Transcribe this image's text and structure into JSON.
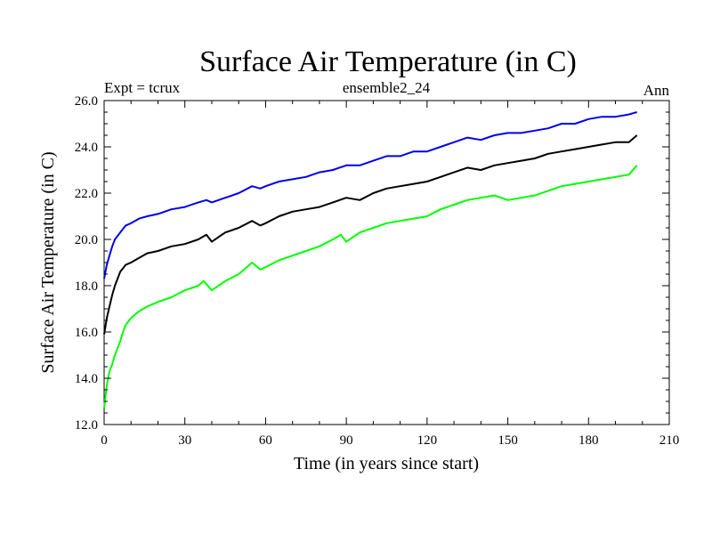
{
  "chart_data": {
    "type": "line",
    "title": "Surface Air Temperature (in C)",
    "subtitle_left": "Expt = tcrux",
    "subtitle_center": "ensemble2_24",
    "subtitle_right": "Ann",
    "xlabel": "Time (in years since start)",
    "ylabel": "Surface Air Temperature (in C)",
    "xlim": [
      0,
      210
    ],
    "ylim": [
      12.0,
      26.0
    ],
    "xticks": [
      0,
      30,
      60,
      90,
      120,
      150,
      180,
      210
    ],
    "xtick_labels": [
      "0",
      "30",
      "60",
      "90",
      "120",
      "150",
      "180",
      "210"
    ],
    "yticks": [
      12.0,
      14.0,
      16.0,
      18.0,
      20.0,
      22.0,
      24.0,
      26.0
    ],
    "ytick_labels": [
      "12.0",
      "14.0",
      "16.0",
      "18.0",
      "20.0",
      "22.0",
      "24.0",
      "26.0"
    ],
    "grid": false,
    "series": [
      {
        "name": "upper",
        "color": "#0000ee",
        "x": [
          0,
          1,
          2,
          3,
          4,
          6,
          8,
          10,
          13,
          16,
          20,
          25,
          30,
          35,
          38,
          40,
          45,
          50,
          55,
          58,
          60,
          65,
          70,
          75,
          80,
          85,
          90,
          95,
          100,
          105,
          110,
          115,
          120,
          125,
          130,
          135,
          140,
          145,
          150,
          155,
          160,
          165,
          170,
          175,
          180,
          185,
          190,
          195,
          198
        ],
        "values": [
          18.3,
          18.9,
          19.3,
          19.7,
          20.0,
          20.3,
          20.6,
          20.7,
          20.9,
          21.0,
          21.1,
          21.3,
          21.4,
          21.6,
          21.7,
          21.6,
          21.8,
          22.0,
          22.3,
          22.2,
          22.3,
          22.5,
          22.6,
          22.7,
          22.9,
          23.0,
          23.2,
          23.2,
          23.4,
          23.6,
          23.6,
          23.8,
          23.8,
          24.0,
          24.2,
          24.4,
          24.3,
          24.5,
          24.6,
          24.6,
          24.7,
          24.8,
          25.0,
          25.0,
          25.2,
          25.3,
          25.3,
          25.4,
          25.5
        ]
      },
      {
        "name": "middle",
        "color": "#000000",
        "x": [
          0,
          1,
          2,
          3,
          4,
          6,
          8,
          10,
          13,
          16,
          20,
          25,
          30,
          35,
          38,
          40,
          45,
          50,
          55,
          58,
          60,
          65,
          70,
          75,
          80,
          85,
          90,
          95,
          100,
          105,
          110,
          115,
          120,
          125,
          130,
          135,
          140,
          145,
          150,
          155,
          160,
          165,
          170,
          175,
          180,
          185,
          190,
          195,
          198
        ],
        "values": [
          15.9,
          16.6,
          17.1,
          17.6,
          18.0,
          18.6,
          18.9,
          19.0,
          19.2,
          19.4,
          19.5,
          19.7,
          19.8,
          20.0,
          20.2,
          19.9,
          20.3,
          20.5,
          20.8,
          20.6,
          20.7,
          21.0,
          21.2,
          21.3,
          21.4,
          21.6,
          21.8,
          21.7,
          22.0,
          22.2,
          22.3,
          22.4,
          22.5,
          22.7,
          22.9,
          23.1,
          23.0,
          23.2,
          23.3,
          23.4,
          23.5,
          23.7,
          23.8,
          23.9,
          24.0,
          24.1,
          24.2,
          24.2,
          24.5
        ]
      },
      {
        "name": "lower",
        "color": "#00ff00",
        "x": [
          0,
          1,
          2,
          3,
          4,
          5,
          6,
          7,
          8,
          10,
          13,
          16,
          20,
          25,
          30,
          35,
          37,
          40,
          45,
          50,
          55,
          58,
          60,
          65,
          70,
          75,
          80,
          85,
          88,
          90,
          95,
          100,
          105,
          110,
          115,
          120,
          125,
          130,
          135,
          140,
          145,
          150,
          155,
          160,
          165,
          170,
          175,
          180,
          185,
          190,
          195,
          198
        ],
        "values": [
          12.7,
          13.7,
          14.3,
          14.6,
          15.0,
          15.3,
          15.6,
          16.0,
          16.3,
          16.6,
          16.9,
          17.1,
          17.3,
          17.5,
          17.8,
          18.0,
          18.2,
          17.8,
          18.2,
          18.5,
          19.0,
          18.7,
          18.8,
          19.1,
          19.3,
          19.5,
          19.7,
          20.0,
          20.2,
          19.9,
          20.3,
          20.5,
          20.7,
          20.8,
          20.9,
          21.0,
          21.3,
          21.5,
          21.7,
          21.8,
          21.9,
          21.7,
          21.8,
          21.9,
          22.1,
          22.3,
          22.4,
          22.5,
          22.6,
          22.7,
          22.8,
          23.2
        ]
      }
    ]
  }
}
